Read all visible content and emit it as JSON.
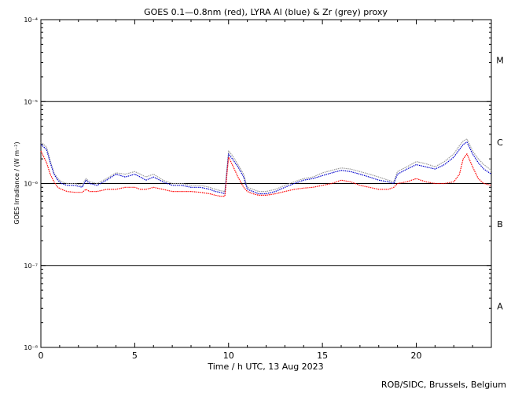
{
  "chart_data": {
    "type": "line",
    "title": "GOES 0.1—0.8nm (red), LYRA Al (blue) & Zr (grey) proxy",
    "xlabel": "Time / h UTC, 13 Aug 2023",
    "ylabel": "GOES Irradiance / (W m⁻²)",
    "xlim": [
      0,
      24
    ],
    "ylim": [
      1e-08,
      0.0001
    ],
    "y_scale": "log",
    "x_ticks": [
      0,
      5,
      10,
      15,
      20
    ],
    "y_ticks": [
      {
        "value": 1e-08,
        "label": "10⁻⁸"
      },
      {
        "value": 1e-07,
        "label": "10⁻⁷"
      },
      {
        "value": 1e-06,
        "label": "10⁻⁶"
      },
      {
        "value": 1e-05,
        "label": "10⁻⁵"
      },
      {
        "value": 0.0001,
        "label": "10⁻⁴"
      }
    ],
    "reference_lines": [
      1e-07,
      1e-06,
      1e-05
    ],
    "flare_classes": [
      {
        "label": "M",
        "value": 3.2e-05
      },
      {
        "label": "C",
        "value": 3.2e-06
      },
      {
        "label": "B",
        "value": 3.2e-07
      },
      {
        "label": "A",
        "value": 3.2e-08
      }
    ],
    "series": [
      {
        "color": "#ff0000",
        "x": [
          0,
          0.3,
          0.5,
          0.7,
          0.9,
          1.1,
          1.4,
          1.8,
          2.2,
          2.4,
          2.6,
          3.0,
          3.5,
          4.0,
          4.5,
          5.0,
          5.3,
          5.6,
          6.0,
          6.5,
          7.0,
          7.5,
          8.0,
          8.5,
          9.0,
          9.3,
          9.55,
          9.8,
          10.0,
          10.2,
          10.5,
          10.8,
          11.0,
          11.3,
          11.6,
          12.0,
          12.5,
          13.0,
          13.5,
          14.0,
          14.5,
          15.0,
          15.5,
          16.0,
          16.5,
          17.0,
          17.5,
          18.0,
          18.5,
          18.8,
          19.0,
          19.5,
          20.0,
          20.5,
          21.0,
          21.5,
          22.0,
          22.3,
          22.5,
          22.7,
          23.0,
          23.3,
          23.6,
          24.0
        ],
        "y": [
          2.5e-06,
          1.8e-06,
          1.3e-06,
          1.05e-06,
          9e-07,
          8.5e-07,
          8e-07,
          7.8e-07,
          7.8e-07,
          8.5e-07,
          8e-07,
          8e-07,
          8.5e-07,
          8.5e-07,
          9e-07,
          9e-07,
          8.5e-07,
          8.5e-07,
          9e-07,
          8.5e-07,
          8e-07,
          8e-07,
          8e-07,
          7.8e-07,
          7.5e-07,
          7.2e-07,
          7e-07,
          7e-07,
          2.1e-06,
          1.7e-06,
          1.2e-06,
          9e-07,
          8e-07,
          7.5e-07,
          7.2e-07,
          7.2e-07,
          7.5e-07,
          8e-07,
          8.5e-07,
          8.8e-07,
          9e-07,
          9.5e-07,
          1e-06,
          1.1e-06,
          1.05e-06,
          9.5e-07,
          9e-07,
          8.5e-07,
          8.5e-07,
          9e-07,
          1e-06,
          1.05e-06,
          1.15e-06,
          1.05e-06,
          1e-06,
          1e-06,
          1.05e-06,
          1.3e-06,
          2e-06,
          2.3e-06,
          1.6e-06,
          1.15e-06,
          1e-06,
          9.5e-07
        ]
      },
      {
        "color": "#0000cc",
        "x": [
          0,
          0.3,
          0.5,
          0.7,
          0.9,
          1.1,
          1.4,
          1.8,
          2.2,
          2.4,
          2.6,
          3.0,
          3.5,
          4.0,
          4.5,
          5.0,
          5.3,
          5.6,
          6.0,
          6.5,
          7.0,
          7.5,
          8.0,
          8.5,
          9.0,
          9.3,
          9.55,
          9.8,
          10.0,
          10.2,
          10.5,
          10.8,
          11.0,
          11.3,
          11.6,
          12.0,
          12.5,
          13.0,
          13.5,
          14.0,
          14.5,
          15.0,
          15.5,
          16.0,
          16.5,
          17.0,
          17.5,
          18.0,
          18.5,
          18.8,
          19.0,
          19.5,
          20.0,
          20.5,
          21.0,
          21.5,
          22.0,
          22.3,
          22.5,
          22.7,
          23.0,
          23.3,
          23.6,
          24.0
        ],
        "y": [
          3e-06,
          2.6e-06,
          1.8e-06,
          1.3e-06,
          1.1e-06,
          1e-06,
          9.5e-07,
          9.5e-07,
          9e-07,
          1.1e-06,
          1e-06,
          9.5e-07,
          1.1e-06,
          1.3e-06,
          1.2e-06,
          1.3e-06,
          1.2e-06,
          1.1e-06,
          1.2e-06,
          1.05e-06,
          9.5e-07,
          9.5e-07,
          9e-07,
          9e-07,
          8.5e-07,
          8e-07,
          7.8e-07,
          7.5e-07,
          2.3e-06,
          2e-06,
          1.6e-06,
          1.2e-06,
          8.5e-07,
          8e-07,
          7.5e-07,
          7.5e-07,
          8e-07,
          9e-07,
          1e-06,
          1.1e-06,
          1.15e-06,
          1.25e-06,
          1.35e-06,
          1.45e-06,
          1.4e-06,
          1.3e-06,
          1.2e-06,
          1.1e-06,
          1.05e-06,
          1e-06,
          1.3e-06,
          1.5e-06,
          1.7e-06,
          1.6e-06,
          1.5e-06,
          1.7e-06,
          2.1e-06,
          2.6e-06,
          3e-06,
          3.2e-06,
          2.3e-06,
          1.8e-06,
          1.5e-06,
          1.3e-06
        ]
      },
      {
        "color": "#999999",
        "x": [
          0,
          0.3,
          0.5,
          0.7,
          0.9,
          1.1,
          1.4,
          1.8,
          2.2,
          2.4,
          2.6,
          3.0,
          3.5,
          4.0,
          4.5,
          5.0,
          5.3,
          5.6,
          6.0,
          6.5,
          7.0,
          7.5,
          8.0,
          8.5,
          9.0,
          9.3,
          9.55,
          9.8,
          10.0,
          10.2,
          10.5,
          10.8,
          11.0,
          11.3,
          11.6,
          12.0,
          12.5,
          13.0,
          13.5,
          14.0,
          14.5,
          15.0,
          15.5,
          16.0,
          16.5,
          17.0,
          17.5,
          18.0,
          18.5,
          18.8,
          19.0,
          19.5,
          20.0,
          20.5,
          21.0,
          21.5,
          22.0,
          22.3,
          22.5,
          22.7,
          23.0,
          23.3,
          23.6,
          24.0
        ],
        "y": [
          3.2e-06,
          2.8e-06,
          1.9e-06,
          1.35e-06,
          1.15e-06,
          1.05e-06,
          1e-06,
          1e-06,
          9.5e-07,
          1.15e-06,
          1.05e-06,
          1e-06,
          1.15e-06,
          1.35e-06,
          1.3e-06,
          1.4e-06,
          1.3e-06,
          1.2e-06,
          1.3e-06,
          1.1e-06,
          1e-06,
          1e-06,
          9.5e-07,
          9.5e-07,
          9e-07,
          8.5e-07,
          8.2e-07,
          8e-07,
          2.5e-06,
          2.2e-06,
          1.7e-06,
          1.3e-06,
          9e-07,
          8.5e-07,
          8e-07,
          8e-07,
          8.5e-07,
          9.5e-07,
          1.05e-06,
          1.15e-06,
          1.2e-06,
          1.35e-06,
          1.45e-06,
          1.55e-06,
          1.5e-06,
          1.4e-06,
          1.3e-06,
          1.2e-06,
          1.1e-06,
          1.05e-06,
          1.4e-06,
          1.6e-06,
          1.85e-06,
          1.75e-06,
          1.6e-06,
          1.85e-06,
          2.3e-06,
          2.9e-06,
          3.3e-06,
          3.5e-06,
          2.5e-06,
          2e-06,
          1.7e-06,
          1.45e-06
        ]
      }
    ]
  },
  "footer": {
    "credit": "ROB/SIDC, Brussels, Belgium"
  }
}
